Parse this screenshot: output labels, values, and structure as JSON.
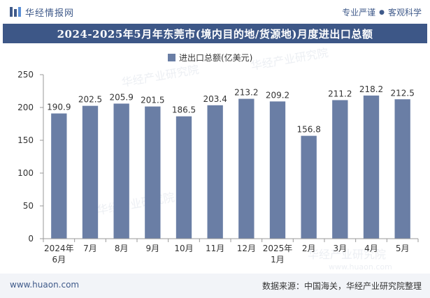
{
  "header": {
    "brand_name": "华经情报网",
    "logo_icon": "huajing-logo-icon",
    "slogan_left": "专业严谨",
    "slogan_right": "客观科学",
    "accent_color": "#3d5787"
  },
  "watermark": {
    "text": "华经产业研究院",
    "url": "www.huaon.com"
  },
  "footer": {
    "website": "www.huaon.com",
    "source": "数据来源：中国海关，华经产业研究院整理"
  },
  "chart_data": {
    "type": "bar",
    "title": "2024-2025年5月年东莞市(境内目的地/货源地)月度进出口总额",
    "legend_position": "top-center",
    "categories": [
      [
        "2024年",
        "6月"
      ],
      [
        "7月"
      ],
      [
        "8月"
      ],
      [
        "9月"
      ],
      [
        "10月"
      ],
      [
        "11月"
      ],
      [
        "12月"
      ],
      [
        "2025年",
        "1月"
      ],
      [
        "2月"
      ],
      [
        "3月"
      ],
      [
        "4月"
      ],
      [
        "5月"
      ]
    ],
    "series": [
      {
        "name": "进出口总额(亿美元)",
        "color": "#6a7ea5",
        "values": [
          190.9,
          202.5,
          205.9,
          201.5,
          186.5,
          203.4,
          213.2,
          209.2,
          156.8,
          211.2,
          218.2,
          212.5
        ],
        "value_labels": [
          "190.9",
          "202.5",
          "205.9",
          "201.5",
          "186.5",
          "203.4",
          "213.2",
          "209.2",
          "156.8",
          "211.2",
          "218.2",
          "212.5"
        ]
      }
    ],
    "ylim": [
      0,
      250
    ],
    "yticks": [
      0,
      50,
      100,
      150,
      200,
      250
    ],
    "grid": false
  }
}
